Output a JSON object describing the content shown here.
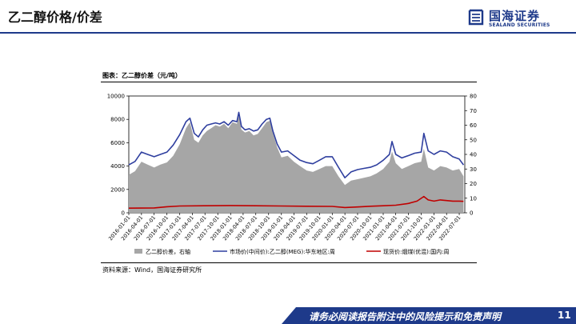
{
  "header": {
    "title": "乙二醇价格/价差",
    "logo_cn": "国海证券",
    "logo_en": "SEALAND SECURITIES"
  },
  "figure": {
    "caption": "图表：乙二醇价差（元/吨）",
    "source": "资料来源：Wind，国海证券研究所"
  },
  "footer": {
    "disclaimer": "请务必阅读报告附注中的风险提示和免责声明",
    "page": "11"
  },
  "colors": {
    "brand": "#1e3a8a",
    "spread_fill": "#a6a6a6",
    "market_price": "#2f3f9f",
    "spot_price": "#c00000"
  },
  "chart_data": {
    "type": "area",
    "x_ticks": [
      "2016-01-01",
      "2016-04-01",
      "2016-07-01",
      "2016-10-01",
      "2017-01-01",
      "2017-04-01",
      "2017-07-01",
      "2017-10-01",
      "2018-01-01",
      "2018-04-01",
      "2018-07-01",
      "2018-10-01",
      "2019-01-01",
      "2019-04-01",
      "2019-07-01",
      "2019-10-01",
      "2020-01-01",
      "2020-04-01",
      "2020-07-01",
      "2020-10-01",
      "2021-01-01",
      "2021-04-01",
      "2021-07-01",
      "2021-10-01",
      "2022-01-01",
      "2022-04-01",
      "2022-07-01"
    ],
    "y_left": {
      "min": 0,
      "max": 10000,
      "ticks": [
        0,
        2000,
        4000,
        6000,
        8000,
        10000
      ]
    },
    "y_right": {
      "min": 0,
      "max": 8000,
      "ticks": [
        0,
        1000,
        2000,
        3000,
        4000,
        5000,
        6000,
        7000,
        8000
      ]
    },
    "legend_position": "bottom",
    "series": [
      {
        "name": "乙二醇价差，右轴",
        "kind": "area",
        "axis": "right",
        "color": "#a6a6a6",
        "points": [
          [
            "2016-01-01",
            2600
          ],
          [
            "2016-02-15",
            2850
          ],
          [
            "2016-04-01",
            3500
          ],
          [
            "2016-05-15",
            3300
          ],
          [
            "2016-07-01",
            3100
          ],
          [
            "2016-08-15",
            3300
          ],
          [
            "2016-10-01",
            3450
          ],
          [
            "2016-11-15",
            3900
          ],
          [
            "2017-01-01",
            4700
          ],
          [
            "2017-02-15",
            5800
          ],
          [
            "2017-03-15",
            6200
          ],
          [
            "2017-04-15",
            5000
          ],
          [
            "2017-05-15",
            4800
          ],
          [
            "2017-06-15",
            5300
          ],
          [
            "2017-07-15",
            5600
          ],
          [
            "2017-08-15",
            5800
          ],
          [
            "2017-09-15",
            6000
          ],
          [
            "2017-10-15",
            5900
          ],
          [
            "2017-11-15",
            6100
          ],
          [
            "2017-12-15",
            5800
          ],
          [
            "2018-01-15",
            6200
          ],
          [
            "2018-02-15",
            6100
          ],
          [
            "2018-03-01",
            6700
          ],
          [
            "2018-03-20",
            5700
          ],
          [
            "2018-04-15",
            5500
          ],
          [
            "2018-05-15",
            5600
          ],
          [
            "2018-06-15",
            5300
          ],
          [
            "2018-07-15",
            5400
          ],
          [
            "2018-08-15",
            5800
          ],
          [
            "2018-09-15",
            6200
          ],
          [
            "2018-10-10",
            6300
          ],
          [
            "2018-11-01",
            5500
          ],
          [
            "2018-12-01",
            4500
          ],
          [
            "2019-01-01",
            3800
          ],
          [
            "2019-02-15",
            3900
          ],
          [
            "2019-04-01",
            3500
          ],
          [
            "2019-05-15",
            3200
          ],
          [
            "2019-07-01",
            2900
          ],
          [
            "2019-08-15",
            2800
          ],
          [
            "2019-10-01",
            3000
          ],
          [
            "2019-11-15",
            3200
          ],
          [
            "2020-01-01",
            3200
          ],
          [
            "2020-02-15",
            2500
          ],
          [
            "2020-04-01",
            1900
          ],
          [
            "2020-05-15",
            2200
          ],
          [
            "2020-07-01",
            2300
          ],
          [
            "2020-08-15",
            2400
          ],
          [
            "2020-10-01",
            2500
          ],
          [
            "2020-11-15",
            2700
          ],
          [
            "2021-01-01",
            3000
          ],
          [
            "2021-02-15",
            3500
          ],
          [
            "2021-03-05",
            4200
          ],
          [
            "2021-04-01",
            3400
          ],
          [
            "2021-05-15",
            3000
          ],
          [
            "2021-07-01",
            3200
          ],
          [
            "2021-08-15",
            3400
          ],
          [
            "2021-10-01",
            3500
          ],
          [
            "2021-10-20",
            4400
          ],
          [
            "2021-11-20",
            3100
          ],
          [
            "2022-01-01",
            2900
          ],
          [
            "2022-02-15",
            3200
          ],
          [
            "2022-04-01",
            3100
          ],
          [
            "2022-05-15",
            2900
          ],
          [
            "2022-07-01",
            3000
          ],
          [
            "2022-08-01",
            2500
          ]
        ]
      },
      {
        "name": "市场价(中间价):乙二醇(MEG):华东地区:周",
        "kind": "line",
        "axis": "left",
        "color": "#2f3f9f",
        "points": [
          [
            "2016-01-01",
            4100
          ],
          [
            "2016-02-15",
            4400
          ],
          [
            "2016-04-01",
            5200
          ],
          [
            "2016-05-15",
            5000
          ],
          [
            "2016-07-01",
            4800
          ],
          [
            "2016-08-15",
            5000
          ],
          [
            "2016-10-01",
            5200
          ],
          [
            "2016-11-15",
            5800
          ],
          [
            "2017-01-01",
            6700
          ],
          [
            "2017-02-15",
            7800
          ],
          [
            "2017-03-15",
            8100
          ],
          [
            "2017-04-15",
            6800
          ],
          [
            "2017-05-15",
            6500
          ],
          [
            "2017-06-15",
            7100
          ],
          [
            "2017-07-15",
            7500
          ],
          [
            "2017-08-15",
            7600
          ],
          [
            "2017-09-15",
            7700
          ],
          [
            "2017-10-15",
            7600
          ],
          [
            "2017-11-15",
            7800
          ],
          [
            "2017-12-15",
            7500
          ],
          [
            "2018-01-15",
            7900
          ],
          [
            "2018-02-15",
            7800
          ],
          [
            "2018-03-01",
            8600
          ],
          [
            "2018-03-20",
            7400
          ],
          [
            "2018-04-15",
            7100
          ],
          [
            "2018-05-15",
            7200
          ],
          [
            "2018-06-15",
            7000
          ],
          [
            "2018-07-15",
            7100
          ],
          [
            "2018-08-15",
            7600
          ],
          [
            "2018-09-15",
            8000
          ],
          [
            "2018-10-10",
            8100
          ],
          [
            "2018-11-01",
            7000
          ],
          [
            "2018-12-01",
            5900
          ],
          [
            "2019-01-01",
            5200
          ],
          [
            "2019-02-15",
            5300
          ],
          [
            "2019-04-01",
            4900
          ],
          [
            "2019-05-15",
            4500
          ],
          [
            "2019-07-01",
            4300
          ],
          [
            "2019-08-15",
            4200
          ],
          [
            "2019-10-01",
            4500
          ],
          [
            "2019-11-15",
            4800
          ],
          [
            "2020-01-01",
            4800
          ],
          [
            "2020-02-15",
            3900
          ],
          [
            "2020-04-01",
            3000
          ],
          [
            "2020-05-15",
            3500
          ],
          [
            "2020-07-01",
            3700
          ],
          [
            "2020-08-15",
            3800
          ],
          [
            "2020-10-01",
            3900
          ],
          [
            "2020-11-15",
            4100
          ],
          [
            "2021-01-01",
            4500
          ],
          [
            "2021-02-15",
            5000
          ],
          [
            "2021-03-05",
            6100
          ],
          [
            "2021-04-01",
            5000
          ],
          [
            "2021-05-15",
            4700
          ],
          [
            "2021-07-01",
            4900
          ],
          [
            "2021-08-15",
            5100
          ],
          [
            "2021-10-01",
            5200
          ],
          [
            "2021-10-20",
            6800
          ],
          [
            "2021-11-20",
            5300
          ],
          [
            "2022-01-01",
            5000
          ],
          [
            "2022-02-15",
            5300
          ],
          [
            "2022-04-01",
            5200
          ],
          [
            "2022-05-15",
            4800
          ],
          [
            "2022-07-01",
            4600
          ],
          [
            "2022-08-01",
            4100
          ]
        ]
      },
      {
        "name": "现货价:烟煤(优混):国内:周",
        "kind": "line",
        "axis": "left",
        "color": "#c00000",
        "points": [
          [
            "2016-01-01",
            400
          ],
          [
            "2016-07-01",
            420
          ],
          [
            "2016-10-01",
            520
          ],
          [
            "2017-01-01",
            580
          ],
          [
            "2017-07-01",
            600
          ],
          [
            "2018-01-01",
            620
          ],
          [
            "2018-07-01",
            600
          ],
          [
            "2019-01-01",
            580
          ],
          [
            "2019-07-01",
            560
          ],
          [
            "2020-01-01",
            550
          ],
          [
            "2020-04-01",
            450
          ],
          [
            "2020-07-01",
            500
          ],
          [
            "2020-10-01",
            560
          ],
          [
            "2021-01-01",
            600
          ],
          [
            "2021-04-01",
            650
          ],
          [
            "2021-07-01",
            800
          ],
          [
            "2021-09-01",
            1000
          ],
          [
            "2021-10-20",
            1400
          ],
          [
            "2021-11-20",
            1100
          ],
          [
            "2022-01-01",
            1000
          ],
          [
            "2022-02-15",
            1100
          ],
          [
            "2022-04-01",
            1050
          ],
          [
            "2022-05-15",
            1000
          ],
          [
            "2022-07-01",
            1000
          ],
          [
            "2022-08-01",
            980
          ]
        ]
      }
    ]
  }
}
